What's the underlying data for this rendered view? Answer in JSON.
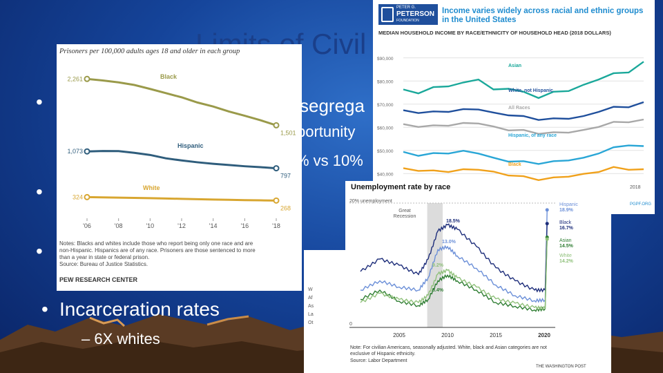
{
  "slide": {
    "title": "Limits of Civil",
    "bullet1_fragment": "segrega",
    "bullet1_sub1_fragment": "portunity",
    "bullet1_sub2_fragment": "% vs 10%",
    "bullet_last": "Incarceration rates",
    "sub_last": "– 6X whites",
    "bullet_glyph": "•",
    "bottom_fragment": "1"
  },
  "prison_chart": {
    "chart_data": {
      "type": "line",
      "title": "Prisoners per 100,000 adults ages 18 and older in each group",
      "x_ticks": [
        "'06",
        "'08",
        "'10",
        "'12",
        "'14",
        "'16",
        "'18"
      ],
      "series": [
        {
          "name": "Black",
          "color": "#9a9a4a",
          "x": [
            2006,
            2007,
            2008,
            2009,
            2010,
            2011,
            2012,
            2013,
            2014,
            2015,
            2016,
            2017,
            2018
          ],
          "values": [
            2261,
            2236,
            2205,
            2162,
            2097,
            2028,
            1960,
            1875,
            1809,
            1727,
            1658,
            1584,
            1501
          ],
          "start_label": "2,261",
          "end_label": "1,501"
        },
        {
          "name": "Hispanic",
          "color": "#2f5d7c",
          "x": [
            2006,
            2007,
            2008,
            2009,
            2010,
            2011,
            2012,
            2013,
            2014,
            2015,
            2016,
            2017,
            2018
          ],
          "values": [
            1073,
            1080,
            1078,
            1050,
            1015,
            960,
            925,
            895,
            870,
            850,
            830,
            815,
            797
          ],
          "start_label": "1,073",
          "end_label": "797"
        },
        {
          "name": "White",
          "color": "#d8a630",
          "x": [
            2006,
            2007,
            2008,
            2009,
            2010,
            2011,
            2012,
            2013,
            2014,
            2015,
            2016,
            2017,
            2018
          ],
          "values": [
            324,
            320,
            316,
            311,
            307,
            301,
            296,
            290,
            285,
            280,
            275,
            271,
            268
          ],
          "start_label": "324",
          "end_label": "268"
        }
      ],
      "ylim": [
        0,
        2400
      ]
    },
    "notes": [
      "Notes: Blacks and whites include those who report being only one race and are",
      "non-Hispanic. Hispanics are of any race. Prisoners are those sentenced to more",
      "than a year in state or federal prison.",
      "Source: Bureau of Justice Statistics."
    ],
    "credit": "PEW RESEARCH CENTER"
  },
  "income_chart": {
    "logo_top": "PETER G.",
    "logo_mid": "PETERSON",
    "logo_bot": "FOUNDATION",
    "headline": "Income varies widely across racial and ethnic groups in the United States",
    "subtitle": "MEDIAN HOUSEHOLD INCOME BY RACE/ETHNICITY OF HOUSEHOLD HEAD (2018 DOLLARS)",
    "source": "PGPF.ORG",
    "last_year_label": "2018",
    "chart_data": {
      "type": "line",
      "y_ticks": [
        "$90,000",
        "$80,000",
        "$70,000",
        "$60,000",
        "$50,000",
        "$40,000"
      ],
      "ylim": [
        35000,
        95000
      ],
      "x": [
        2002,
        2003,
        2004,
        2005,
        2006,
        2007,
        2008,
        2009,
        2010,
        2011,
        2012,
        2013,
        2014,
        2015,
        2016,
        2017,
        2018
      ],
      "series": [
        {
          "name": "Asian",
          "color": "#1aa89a",
          "values": [
            76000,
            75000,
            77000,
            78000,
            79000,
            81000,
            76000,
            77000,
            75000,
            73000,
            75000,
            76000,
            78000,
            81000,
            83000,
            84000,
            88000
          ]
        },
        {
          "name": "White, not Hispanic",
          "color": "#1f4f9c",
          "values": [
            67000,
            66500,
            66500,
            67000,
            67500,
            68000,
            66000,
            65500,
            64500,
            63500,
            63500,
            64000,
            64500,
            67000,
            68500,
            69000,
            70500
          ]
        },
        {
          "name": "All Races",
          "color": "#a8a8a8",
          "values": [
            61000,
            60500,
            60500,
            61000,
            61500,
            62000,
            60000,
            59000,
            58500,
            57500,
            57500,
            58000,
            58500,
            60500,
            62000,
            62500,
            63000
          ]
        },
        {
          "name": "Hispanic, of any race",
          "color": "#29a6d6",
          "values": [
            49000,
            48000,
            48500,
            49000,
            49500,
            49000,
            46500,
            45500,
            45000,
            44500,
            45000,
            46000,
            46500,
            49000,
            51000,
            52500,
            51500
          ]
        },
        {
          "name": "Black",
          "color": "#f0a11b",
          "values": [
            42000,
            41500,
            41000,
            41000,
            41500,
            42000,
            40500,
            39500,
            38500,
            37500,
            38000,
            39000,
            39500,
            41000,
            42500,
            42000,
            41500
          ]
        }
      ]
    }
  },
  "unemployment_chart": {
    "title": "Unemployment rate by race",
    "top_label": "20% unemployment",
    "recession_label": "Great Recession",
    "x_ticks": [
      "2005",
      "2010",
      "2015",
      "2020"
    ],
    "peak_labels": [
      "18.5%",
      "13.0%",
      "9.2%",
      "8.4%"
    ],
    "legend_fragments": [
      "W",
      "Af",
      "As",
      "La",
      "Ot"
    ],
    "notes": "Note: For civilian Americans, seasonally adjusted. White, black and Asian categories are not exclusive of Hispanic ethnicity.",
    "source": "Source: Labor Department",
    "credit": "THE WASHINGTON POST",
    "chart_data": {
      "type": "line",
      "ylim": [
        0,
        20
      ],
      "x": [
        2001,
        2003,
        2005,
        2007,
        2008,
        2009,
        2010,
        2011,
        2013,
        2015,
        2017,
        2019,
        2020.1,
        2020.3
      ],
      "series": [
        {
          "name": "Hispanic",
          "color": "#6b8fd8",
          "values": [
            6,
            7.5,
            6.5,
            6,
            8,
            12.5,
            13,
            11.5,
            9.5,
            6.8,
            5.1,
            4.3,
            4.4,
            18.9
          ],
          "end_label": "18.9%"
        },
        {
          "name": "Black",
          "color": "#1d2d7a",
          "values": [
            9,
            11,
            10,
            8.5,
            11,
            15.5,
            16.5,
            15.8,
            13,
            9.6,
            7.5,
            6,
            6,
            16.7
          ],
          "end_label": "16.7%"
        },
        {
          "name": "Asian",
          "color": "#2e7d32",
          "values": [
            4.5,
            6,
            4.2,
            3.5,
            4.5,
            7.5,
            8.4,
            7.5,
            6,
            4,
            3.4,
            2.8,
            3,
            14.5
          ],
          "end_label": "14.5%"
        },
        {
          "name": "White",
          "color": "#8fc07a",
          "values": [
            4,
            5.5,
            4.5,
            4,
            5.2,
            8.6,
            9.2,
            8,
            6.5,
            4.6,
            3.9,
            3.2,
            3.1,
            14.2
          ],
          "end_label": "14.2%"
        }
      ],
      "ytick_bottom": "0"
    }
  }
}
